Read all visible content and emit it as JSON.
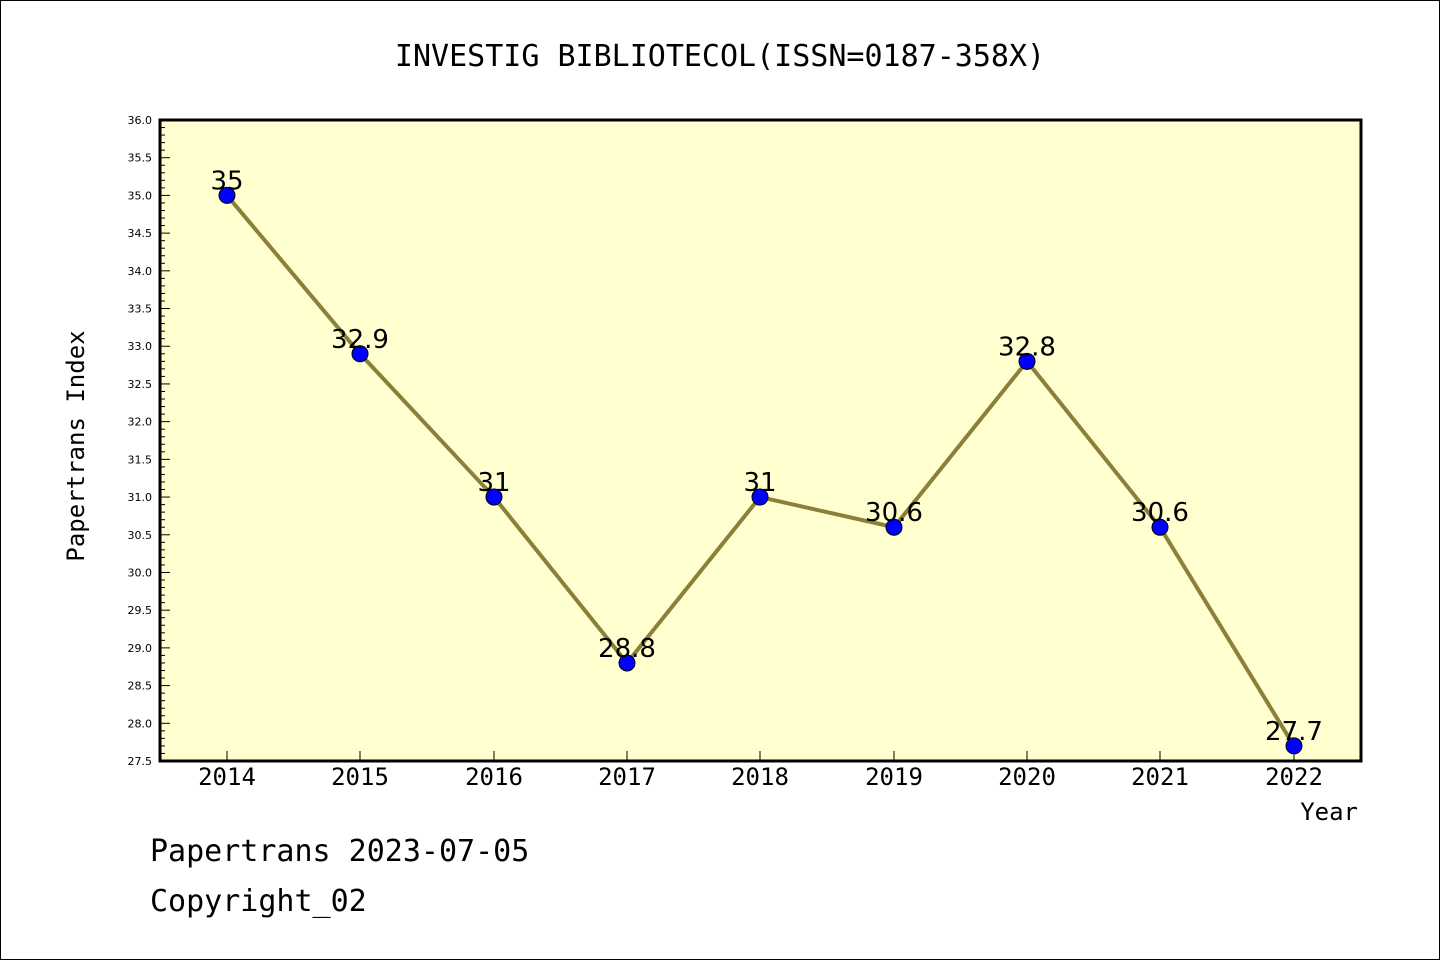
{
  "chart_data": {
    "type": "line",
    "title": "INVESTIG BIBLIOTECOL(ISSN=0187-358X)",
    "xlabel": "Year",
    "ylabel": "Papertrans Index",
    "categories": [
      "2014",
      "2015",
      "2016",
      "2017",
      "2018",
      "2019",
      "2020",
      "2021",
      "2022"
    ],
    "series": [
      {
        "values": [
          35,
          32.9,
          31,
          28.8,
          31,
          30.6,
          32.8,
          30.6,
          27.7
        ],
        "labels": [
          "35",
          "32.9",
          "31",
          "28.8",
          "31",
          "30.6",
          "32.8",
          "30.6",
          "27.7"
        ]
      }
    ],
    "ylim": [
      27.5,
      36.0
    ],
    "yticks": [
      "27.5",
      "28.0",
      "28.5",
      "29.0",
      "29.5",
      "30.0",
      "30.5",
      "31.0",
      "31.5",
      "32.0",
      "32.5",
      "33.0",
      "33.5",
      "34.0",
      "34.5",
      "35.0",
      "35.5",
      "36.0"
    ],
    "grid": false,
    "colors": {
      "plot_background": "#ffffd0",
      "line": "#8c7f3a",
      "marker": "#0000ff"
    }
  },
  "footer": {
    "line1": "Papertrans 2023-07-05",
    "line2": "Copyright_02"
  }
}
